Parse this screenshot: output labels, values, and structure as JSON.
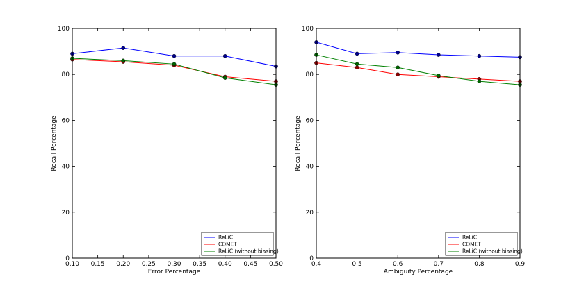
{
  "chart_data": [
    {
      "type": "line",
      "title": "",
      "xlabel": "Error Percentage",
      "ylabel": "Recall Percentage",
      "xlim": [
        0.1,
        0.5
      ],
      "ylim": [
        0,
        100
      ],
      "xticks": [
        "0.10",
        "0.15",
        "0.20",
        "0.25",
        "0.30",
        "0.35",
        "0.40",
        "0.45",
        "0.50"
      ],
      "yticks": [
        "0",
        "20",
        "40",
        "60",
        "80",
        "100"
      ],
      "grid": false,
      "legend_position": "bottom-right",
      "x": [
        0.1,
        0.2,
        0.3,
        0.4,
        0.5
      ],
      "series": [
        {
          "name": "ReLiC",
          "color": "#0000ff",
          "marker_color": "#00008b",
          "values": [
            89,
            91.5,
            88,
            88,
            83.5
          ]
        },
        {
          "name": "COMET",
          "color": "#ff0000",
          "marker_color": "#8b0000",
          "values": [
            86.5,
            85.5,
            84,
            79,
            77
          ]
        },
        {
          "name": "ReLiC (without biasing)",
          "color": "#008000",
          "marker_color": "#006400",
          "values": [
            87,
            86,
            84.5,
            78.5,
            75.5
          ]
        }
      ]
    },
    {
      "type": "line",
      "title": "",
      "xlabel": "Ambiguity Percentage",
      "ylabel": "Recall Percentage",
      "xlim": [
        0.4,
        0.9
      ],
      "ylim": [
        0,
        100
      ],
      "xticks": [
        "0.4",
        "0.5",
        "0.6",
        "0.7",
        "0.8",
        "0.9"
      ],
      "yticks": [
        "0",
        "20",
        "40",
        "60",
        "80",
        "100"
      ],
      "grid": false,
      "legend_position": "bottom-right",
      "x": [
        0.4,
        0.5,
        0.6,
        0.7,
        0.8,
        0.9
      ],
      "series": [
        {
          "name": "ReLiC",
          "color": "#0000ff",
          "marker_color": "#00008b",
          "values": [
            94,
            89,
            89.5,
            88.5,
            88,
            87.5
          ]
        },
        {
          "name": "COMET",
          "color": "#ff0000",
          "marker_color": "#8b0000",
          "values": [
            85,
            83,
            80,
            79,
            78,
            77
          ]
        },
        {
          "name": "ReLiC (without biasing)",
          "color": "#008000",
          "marker_color": "#006400",
          "values": [
            88.5,
            84.5,
            83,
            79.5,
            77,
            75.5
          ]
        }
      ]
    }
  ]
}
